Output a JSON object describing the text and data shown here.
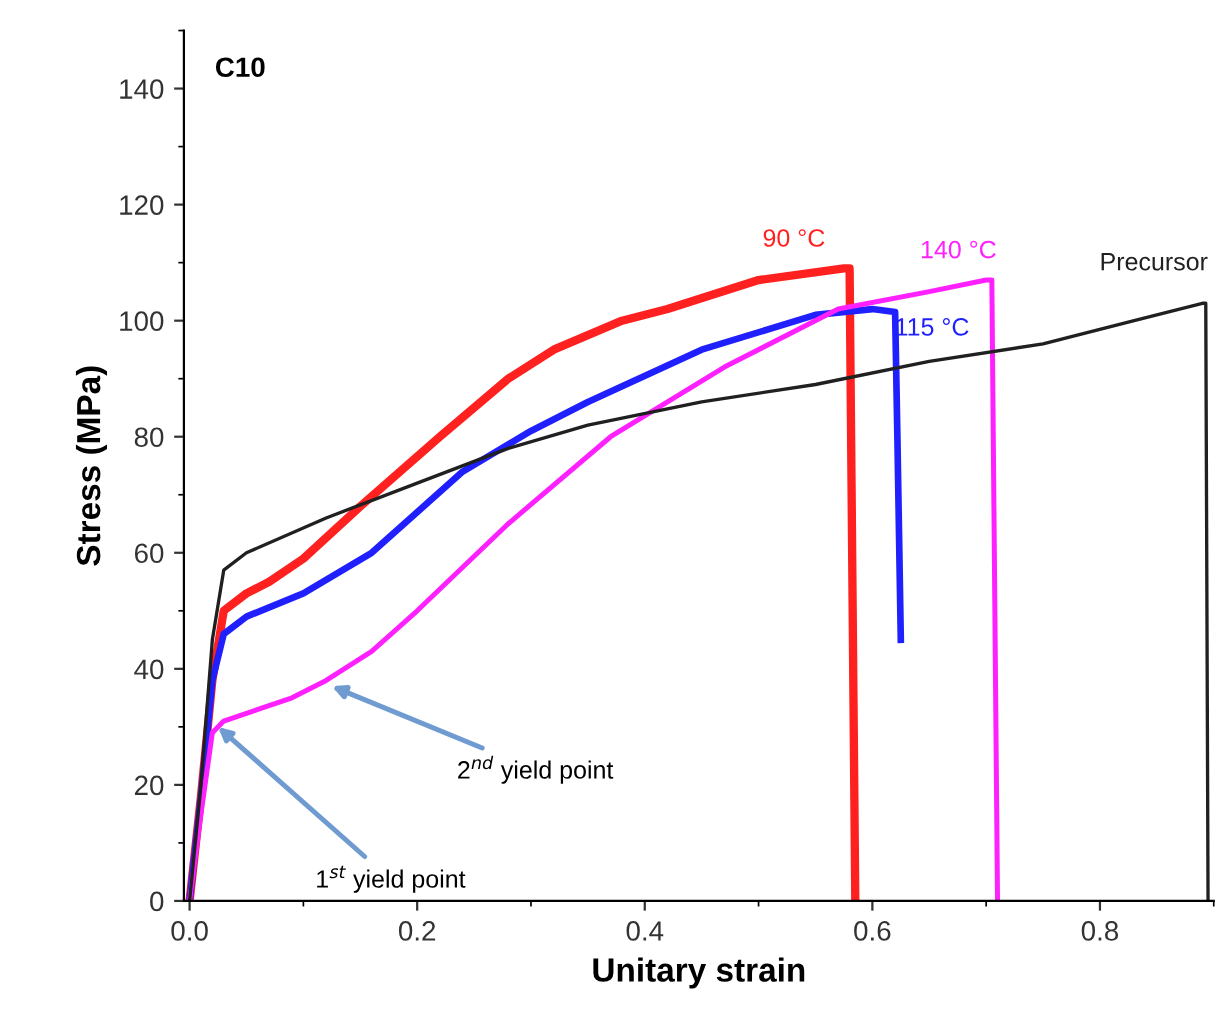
{
  "chart_data": {
    "type": "line",
    "xlabel": "Unitary strain",
    "ylabel": "Stress (MPa)",
    "xlim": [
      -0.005,
      0.9
    ],
    "ylim": [
      0,
      150
    ],
    "xticks": [
      {
        "value": 0,
        "label": "0.0"
      },
      0.2,
      0.4,
      0.6,
      0.8
    ],
    "yticks": [
      0,
      20,
      40,
      60,
      80,
      100,
      120,
      140
    ],
    "grid": false,
    "legend": false,
    "marker": "none",
    "line_style": "solid",
    "annotations": [
      "C10",
      {
        "text": "1$^{st}$ yield point",
        "x": 0.025,
        "y": 30
      },
      {
        "text": "2$^{nd}$ yield point",
        "x": 0.125,
        "y": 37
      }
    ],
    "series": [
      {
        "name": "90 °C",
        "color": "#ff2020",
        "x": [
          0,
          0.01,
          0.02,
          0.03,
          0.05,
          0.07,
          0.1,
          0.15,
          0.22,
          0.28,
          0.32,
          0.38,
          0.42,
          0.5,
          0.575,
          0.58,
          0.585
        ],
        "values": [
          0,
          18,
          38,
          50,
          53,
          55,
          59,
          68,
          80,
          90,
          95,
          100,
          102,
          107,
          109,
          109,
          0
        ]
      },
      {
        "name": "115 °C",
        "color": "#2020ff",
        "x": [
          0,
          0.01,
          0.02,
          0.03,
          0.05,
          0.1,
          0.16,
          0.24,
          0.3,
          0.35,
          0.45,
          0.55,
          0.6,
          0.62,
          0.622,
          0.625
        ],
        "values": [
          0,
          18,
          38,
          46,
          49,
          53,
          60,
          74,
          81,
          86,
          95,
          101,
          102,
          101.5,
          80,
          45
        ]
      },
      {
        "name": "140 °C",
        "color": "#ff20ff",
        "x": [
          0,
          0.01,
          0.02,
          0.03,
          0.06,
          0.09,
          0.12,
          0.16,
          0.2,
          0.28,
          0.37,
          0.47,
          0.57,
          0.65,
          0.7,
          0.705,
          0.71
        ],
        "values": [
          0,
          15,
          29,
          31,
          33,
          35,
          38,
          43,
          50,
          65,
          80,
          92,
          102,
          105,
          107,
          107,
          0
        ]
      },
      {
        "name": "Precursor",
        "color": "#202020",
        "x": [
          0,
          0.01,
          0.02,
          0.03,
          0.05,
          0.12,
          0.2,
          0.28,
          0.35,
          0.45,
          0.55,
          0.65,
          0.75,
          0.83,
          0.89,
          0.893,
          0.895
        ],
        "values": [
          0,
          20,
          45,
          57,
          60,
          66,
          72,
          78,
          82,
          86,
          89,
          93,
          96,
          100,
          103,
          103,
          0
        ]
      }
    ]
  }
}
